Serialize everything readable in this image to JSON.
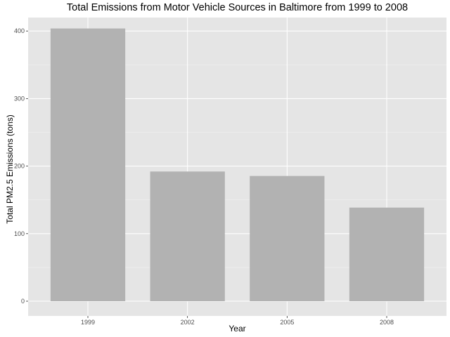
{
  "chart_data": {
    "type": "bar",
    "title": "Total Emissions from Motor Vehicle Sources in Baltimore from 1999 to 2008",
    "xlabel": "Year",
    "ylabel": "Total PM2.5 Emissions (tons)",
    "categories": [
      "1999",
      "2002",
      "2005",
      "2008"
    ],
    "values": [
      403.8,
      192.0,
      185.4,
      138.6
    ],
    "ylim": [
      0,
      424
    ],
    "yticks": [
      0,
      100,
      200,
      300,
      400
    ],
    "grid": true,
    "legend": "none",
    "colors": {
      "panel_background": "#e5e5e5",
      "grid_major": "#ffffff",
      "grid_minor": "#f2f2f2",
      "bar_fill": "#b2b2b2",
      "tick_color": "#333333",
      "tick_label_color": "#4d4d4d"
    }
  }
}
